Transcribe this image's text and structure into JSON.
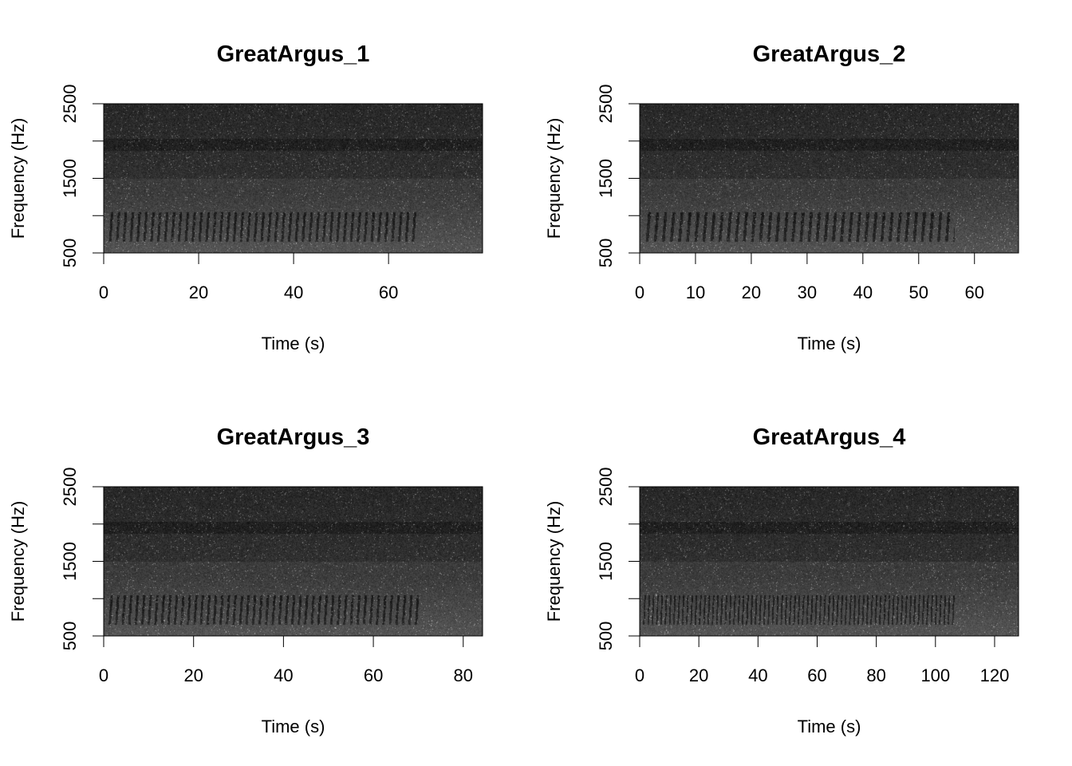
{
  "chart_data": [
    {
      "type": "heatmap",
      "title": "GreatArgus_1",
      "xlabel": "Time (s)",
      "ylabel": "Frequency (Hz)",
      "xlim": [
        0,
        79.8
      ],
      "ylim": [
        500,
        2500
      ],
      "xticks": [
        0,
        20,
        40,
        60
      ],
      "yticks": [
        500,
        1000,
        1500,
        2000,
        2500
      ],
      "ytick_labels": [
        "500",
        "",
        "1500",
        "",
        "2500"
      ],
      "colormap": "grayscale",
      "grid": false
    },
    {
      "type": "heatmap",
      "title": "GreatArgus_2",
      "xlabel": "Time (s)",
      "ylabel": "Frequency (Hz)",
      "xlim": [
        0,
        67.9
      ],
      "ylim": [
        500,
        2500
      ],
      "xticks": [
        0,
        10,
        20,
        30,
        40,
        50,
        60
      ],
      "yticks": [
        500,
        1000,
        1500,
        2000,
        2500
      ],
      "ytick_labels": [
        "500",
        "",
        "1500",
        "",
        "2500"
      ],
      "colormap": "grayscale",
      "grid": false
    },
    {
      "type": "heatmap",
      "title": "GreatArgus_3",
      "xlabel": "Time (s)",
      "ylabel": "Frequency (Hz)",
      "xlim": [
        0,
        84.3
      ],
      "ylim": [
        500,
        2500
      ],
      "xticks": [
        0,
        20,
        40,
        60,
        80
      ],
      "yticks": [
        500,
        1000,
        1500,
        2000,
        2500
      ],
      "ytick_labels": [
        "500",
        "",
        "1500",
        "",
        "2500"
      ],
      "colormap": "grayscale",
      "grid": false
    },
    {
      "type": "heatmap",
      "title": "GreatArgus_4",
      "xlabel": "Time (s)",
      "ylabel": "Frequency (Hz)",
      "xlim": [
        0,
        128.1
      ],
      "ylim": [
        500,
        2500
      ],
      "xticks": [
        0,
        20,
        40,
        60,
        80,
        100,
        120
      ],
      "yticks": [
        500,
        1000,
        1500,
        2000,
        2500
      ],
      "ytick_labels": [
        "500",
        "",
        "1500",
        "",
        "2500"
      ],
      "colormap": "grayscale",
      "grid": false
    }
  ]
}
